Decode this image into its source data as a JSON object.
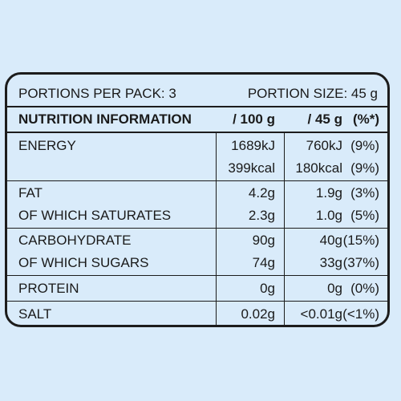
{
  "header": {
    "portions": "PORTIONS PER PACK: 3",
    "portion_size": "PORTION SIZE: 45 g"
  },
  "columns": {
    "title": "NUTRITION INFORMATION",
    "per100": "/ 100 g",
    "per45": "/ 45 g",
    "pct": "(%*)"
  },
  "rows": {
    "energy": {
      "label": "ENERGY",
      "kj100": "1689kJ",
      "kj45": "760kJ",
      "kjpct": "(9%)",
      "kcal100": "399kcal",
      "kcal45": "180kcal",
      "kcalpct": "(9%)"
    },
    "fat": {
      "label": "FAT",
      "v100": "4.2g",
      "v45": "1.9g",
      "pct": "(3%)"
    },
    "saturates": {
      "label": "OF WHICH SATURATES",
      "v100": "2.3g",
      "v45": "1.0g",
      "pct": "(5%)"
    },
    "carbohydrate": {
      "label": "CARBOHYDRATE",
      "v100": "90g",
      "v45": "40g",
      "pct": "(15%)"
    },
    "sugars": {
      "label": "OF WHICH SUGARS",
      "v100": "74g",
      "v45": "33g",
      "pct": "(37%)"
    },
    "protein": {
      "label": "PROTEIN",
      "v100": "0g",
      "v45": "0g",
      "pct": "(0%)"
    },
    "salt": {
      "label": "SALT",
      "v100": "0.02g",
      "v45": "<0.01g",
      "pct": "(<1%)"
    }
  }
}
